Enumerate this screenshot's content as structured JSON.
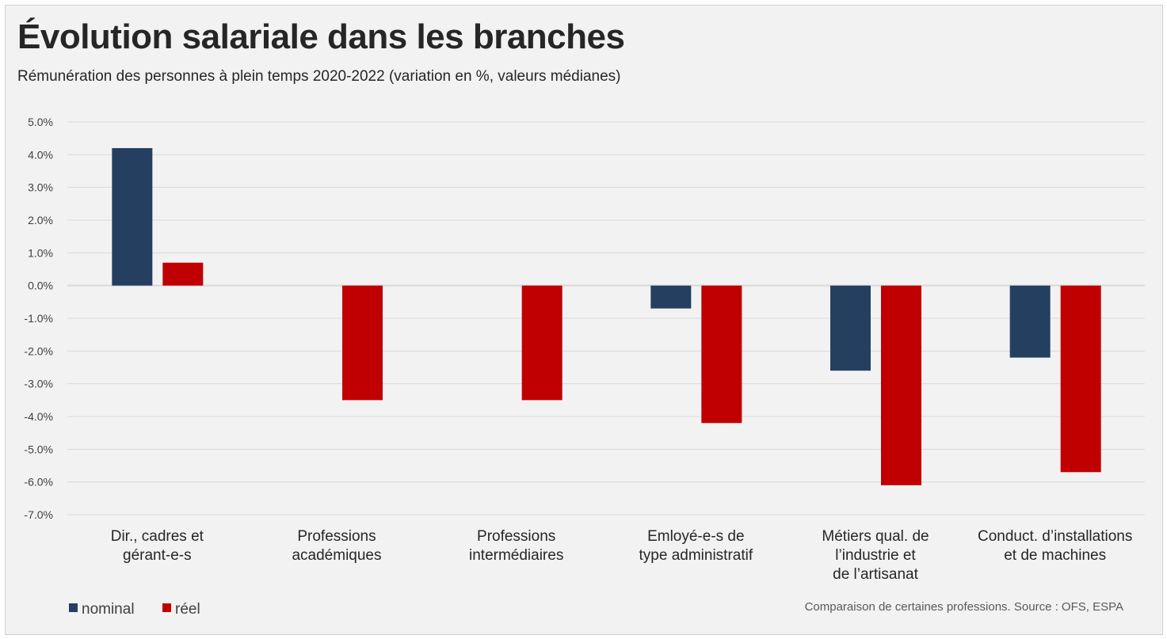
{
  "title": "Évolution salariale dans les branches",
  "subtitle": "Rémunération des personnes à plein temps 2020-2022 (variation en %, valeurs médianes)",
  "source": "Comparaison de certaines professions. Source : OFS, ESPA",
  "chart_data": {
    "type": "bar",
    "categories": [
      [
        "Dir., cadres et",
        "gérant-e-s"
      ],
      [
        "Professions",
        "académiques"
      ],
      [
        "Professions",
        "intermédiaires"
      ],
      [
        "Emloyé-e-s de",
        "type administratif"
      ],
      [
        "Métiers qual. de",
        "l’industrie et",
        "de l’artisanat"
      ],
      [
        "Conduct. d’installations",
        "et de machines"
      ]
    ],
    "series": [
      {
        "name": "nominal",
        "color": "#243f60",
        "values": [
          4.2,
          0.0,
          0.0,
          -0.7,
          -2.6,
          -2.2
        ]
      },
      {
        "name": "réel",
        "color": "#c00000",
        "values": [
          0.7,
          -3.5,
          -3.5,
          -4.2,
          -6.1,
          -5.7
        ]
      }
    ],
    "ylim": [
      -7,
      5
    ],
    "yticks": [
      "5.0%",
      "4.0%",
      "3.0%",
      "2.0%",
      "1.0%",
      "0.0%",
      "-1.0%",
      "-2.0%",
      "-3.0%",
      "-4.0%",
      "-5.0%",
      "-6.0%",
      "-7.0%"
    ],
    "grid": true,
    "legend": "bottom-left"
  }
}
